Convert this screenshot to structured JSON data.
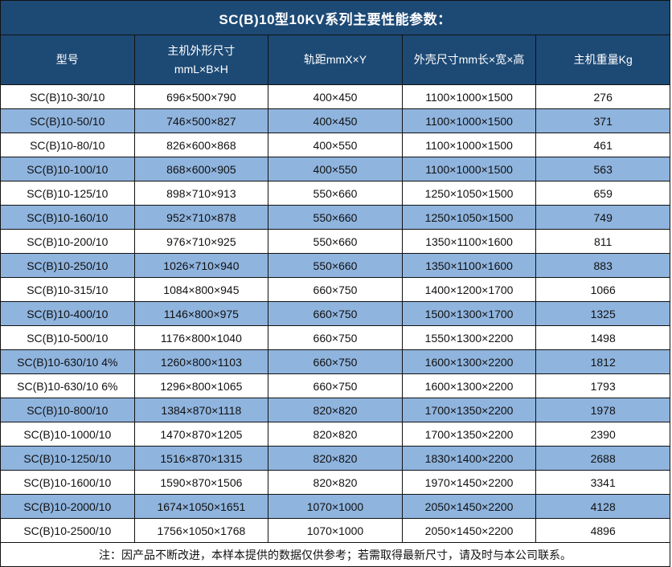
{
  "title": "SC(B)10型10KV系列主要性能参数：",
  "table": {
    "headers": [
      "型号",
      "主机外形尺寸\nmmL×B×H",
      "轨距mmX×Y",
      "外壳尺寸mm长×宽×高",
      "主机重量Kg"
    ],
    "rows": [
      [
        "SC(B)10-30/10",
        "696×500×790",
        "400×450",
        "1100×1000×1500",
        "276"
      ],
      [
        "SC(B)10-50/10",
        "746×500×827",
        "400×450",
        "1100×1000×1500",
        "371"
      ],
      [
        "SC(B)10-80/10",
        "826×600×868",
        "400×550",
        "1100×1000×1500",
        "461"
      ],
      [
        "SC(B)10-100/10",
        "868×600×905",
        "400×550",
        "1100×1000×1500",
        "563"
      ],
      [
        "SC(B)10-125/10",
        "898×710×913",
        "550×660",
        "1250×1050×1500",
        "659"
      ],
      [
        "SC(B)10-160/10",
        "952×710×878",
        "550×660",
        "1250×1050×1500",
        "749"
      ],
      [
        "SC(B)10-200/10",
        "976×710×925",
        "550×660",
        "1350×1100×1600",
        "811"
      ],
      [
        "SC(B)10-250/10",
        "1026×710×940",
        "550×660",
        "1350×1100×1600",
        "883"
      ],
      [
        "SC(B)10-315/10",
        "1084×800×945",
        "660×750",
        "1400×1200×1700",
        "1066"
      ],
      [
        "SC(B)10-400/10",
        "1146×800×975",
        "660×750",
        "1500×1300×1700",
        "1325"
      ],
      [
        "SC(B)10-500/10",
        "1176×800×1040",
        "660×750",
        "1550×1300×2200",
        "1498"
      ],
      [
        "SC(B)10-630/10 4%",
        "1260×800×1103",
        "660×750",
        "1600×1300×2200",
        "1812"
      ],
      [
        "SC(B)10-630/10 6%",
        "1296×800×1065",
        "660×750",
        "1600×1300×2200",
        "1793"
      ],
      [
        "SC(B)10-800/10",
        "1384×870×1118",
        "820×820",
        "1700×1350×2200",
        "1978"
      ],
      [
        "SC(B)10-1000/10",
        "1470×870×1205",
        "820×820",
        "1700×1350×2200",
        "2390"
      ],
      [
        "SC(B)10-1250/10",
        "1516×870×1315",
        "820×820",
        "1830×1400×2200",
        "2688"
      ],
      [
        "SC(B)10-1600/10",
        "1590×870×1506",
        "820×820",
        "1970×1450×2200",
        "3341"
      ],
      [
        "SC(B)10-2000/10",
        "1674×1050×1651",
        "1070×1000",
        "2050×1450×2200",
        "4128"
      ],
      [
        "SC(B)10-2500/10",
        "1756×1050×1768",
        "1070×1000",
        "2050×1450×2200",
        "4896"
      ]
    ],
    "note": "注：因产品不断改进，本样本提供的数据仅供参考；若需取得最新尺寸，请及时与本公司联系。"
  },
  "colors": {
    "header_bg": "#1d4a75",
    "header_text": "#ffffff",
    "alt_row_bg": "#8fb4de",
    "row_bg": "#ffffff",
    "border": "#111111",
    "cell_text": "#111111"
  }
}
